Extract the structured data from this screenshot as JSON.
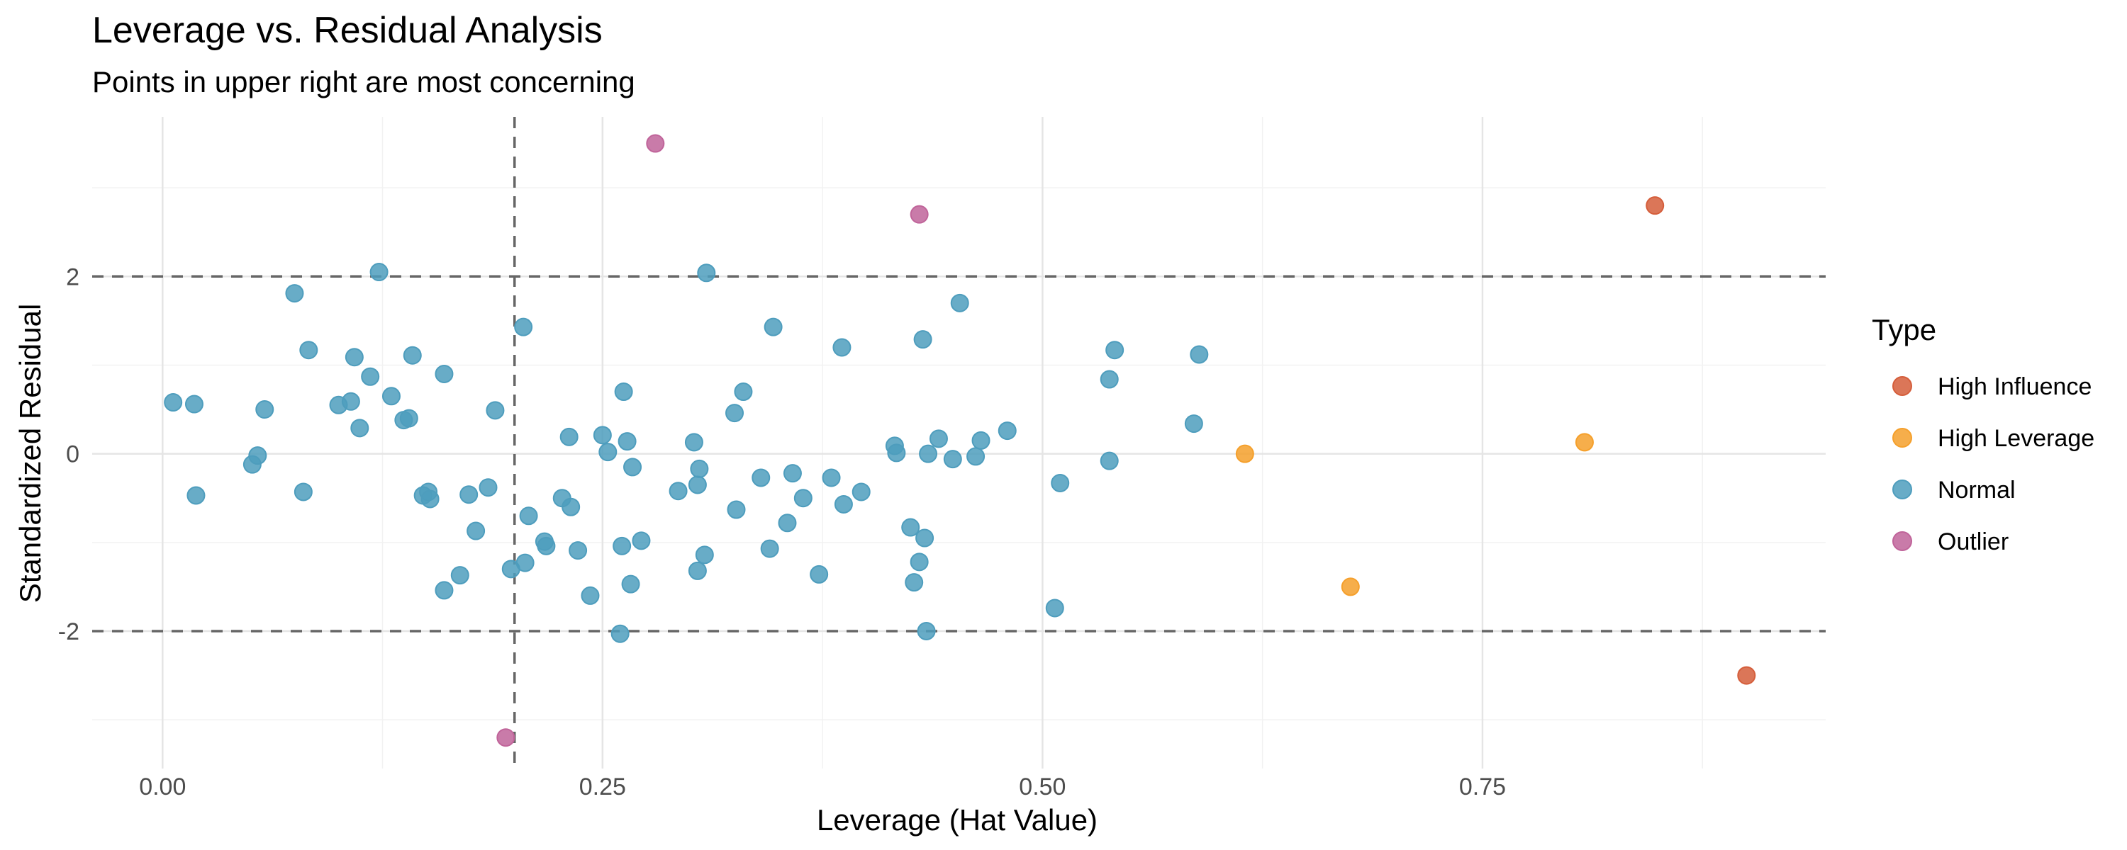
{
  "chart_data": {
    "type": "scatter",
    "title": "Leverage vs. Residual Analysis",
    "subtitle": "Points in upper right are most concerning",
    "xlabel": "Leverage (Hat Value)",
    "ylabel": "Standardized Residual",
    "xlim": [
      -0.04,
      0.945
    ],
    "ylim": [
      -3.55,
      3.8
    ],
    "x_ticks": [
      0,
      0.25,
      0.5,
      0.75
    ],
    "x_tick_labels": [
      "0.00",
      "0.25",
      "0.50",
      "0.75"
    ],
    "y_ticks": [
      -2,
      0,
      2
    ],
    "y_tick_labels": [
      "-2",
      "0",
      "2"
    ],
    "grid": true,
    "reference_lines": {
      "horizontal": [
        -2,
        2
      ],
      "vertical": [
        0.2
      ]
    },
    "legend": {
      "title": "Type",
      "position": "right"
    },
    "series": [
      {
        "name": "High Influence",
        "color": "#D55E3B",
        "points": [
          [
            0.848,
            2.8
          ],
          [
            0.9,
            -2.5
          ]
        ]
      },
      {
        "name": "High Leverage",
        "color": "#F5A02C",
        "points": [
          [
            0.615,
            0.0
          ],
          [
            0.808,
            0.13
          ],
          [
            0.675,
            -1.5
          ]
        ]
      },
      {
        "name": "Normal",
        "color": "#4E9DBD",
        "points": [
          [
            0.006,
            0.58
          ],
          [
            0.018,
            0.56
          ],
          [
            0.019,
            -0.47
          ],
          [
            0.051,
            -0.12
          ],
          [
            0.054,
            -0.02
          ],
          [
            0.058,
            0.5
          ],
          [
            0.08,
            -0.43
          ],
          [
            0.083,
            1.17
          ],
          [
            0.075,
            1.81
          ],
          [
            0.1,
            0.55
          ],
          [
            0.107,
            0.59
          ],
          [
            0.109,
            1.09
          ],
          [
            0.112,
            0.29
          ],
          [
            0.118,
            0.87
          ],
          [
            0.123,
            2.05
          ],
          [
            0.13,
            0.65
          ],
          [
            0.137,
            0.38
          ],
          [
            0.14,
            0.4
          ],
          [
            0.142,
            1.11
          ],
          [
            0.148,
            -0.47
          ],
          [
            0.151,
            -0.43
          ],
          [
            0.152,
            -0.51
          ],
          [
            0.16,
            0.9
          ],
          [
            0.16,
            -1.54
          ],
          [
            0.169,
            -1.37
          ],
          [
            0.174,
            -0.46
          ],
          [
            0.178,
            -0.87
          ],
          [
            0.185,
            -0.38
          ],
          [
            0.189,
            0.49
          ],
          [
            0.198,
            -1.3
          ],
          [
            0.205,
            1.43
          ],
          [
            0.206,
            -1.23
          ],
          [
            0.208,
            -0.7
          ],
          [
            0.217,
            -0.99
          ],
          [
            0.218,
            -1.04
          ],
          [
            0.227,
            -0.5
          ],
          [
            0.231,
            0.19
          ],
          [
            0.232,
            -0.6
          ],
          [
            0.236,
            -1.09
          ],
          [
            0.243,
            -1.6
          ],
          [
            0.25,
            0.21
          ],
          [
            0.253,
            0.02
          ],
          [
            0.26,
            -2.03
          ],
          [
            0.261,
            -1.04
          ],
          [
            0.262,
            0.7
          ],
          [
            0.264,
            0.14
          ],
          [
            0.266,
            -1.47
          ],
          [
            0.267,
            -0.15
          ],
          [
            0.272,
            -0.98
          ],
          [
            0.293,
            -0.42
          ],
          [
            0.302,
            0.13
          ],
          [
            0.304,
            -1.32
          ],
          [
            0.304,
            -0.35
          ],
          [
            0.305,
            -0.17
          ],
          [
            0.308,
            -1.14
          ],
          [
            0.309,
            2.04
          ],
          [
            0.325,
            0.46
          ],
          [
            0.326,
            -0.63
          ],
          [
            0.33,
            0.7
          ],
          [
            0.34,
            -0.27
          ],
          [
            0.345,
            -1.07
          ],
          [
            0.347,
            1.43
          ],
          [
            0.355,
            -0.78
          ],
          [
            0.358,
            -0.22
          ],
          [
            0.364,
            -0.5
          ],
          [
            0.373,
            -1.36
          ],
          [
            0.38,
            -0.27
          ],
          [
            0.386,
            1.2
          ],
          [
            0.387,
            -0.57
          ],
          [
            0.397,
            -0.43
          ],
          [
            0.416,
            0.09
          ],
          [
            0.417,
            0.01
          ],
          [
            0.425,
            -0.83
          ],
          [
            0.427,
            -1.45
          ],
          [
            0.43,
            -1.22
          ],
          [
            0.432,
            1.29
          ],
          [
            0.433,
            -0.95
          ],
          [
            0.434,
            -2.0
          ],
          [
            0.435,
            0.0
          ],
          [
            0.441,
            0.17
          ],
          [
            0.449,
            -0.06
          ],
          [
            0.453,
            1.7
          ],
          [
            0.462,
            -0.03
          ],
          [
            0.465,
            0.15
          ],
          [
            0.48,
            0.26
          ],
          [
            0.507,
            -1.74
          ],
          [
            0.51,
            -0.33
          ],
          [
            0.538,
            -0.08
          ],
          [
            0.538,
            0.84
          ],
          [
            0.541,
            1.17
          ],
          [
            0.586,
            0.34
          ],
          [
            0.589,
            1.12
          ]
        ]
      },
      {
        "name": "Outlier",
        "color": "#C0649A",
        "points": [
          [
            0.28,
            3.5
          ],
          [
            0.43,
            2.7
          ],
          [
            0.195,
            -3.2
          ]
        ]
      }
    ]
  }
}
